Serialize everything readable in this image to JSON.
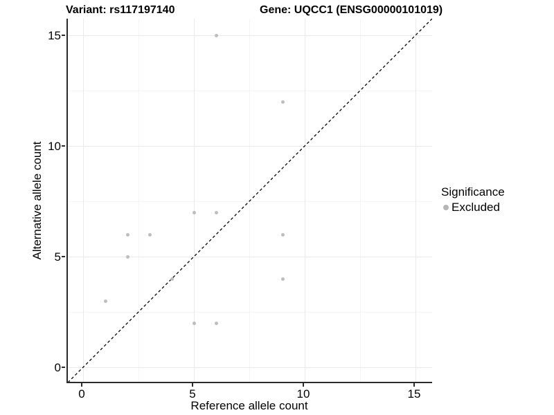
{
  "header": {
    "variant_title": "Variant: rs117197140",
    "gene_title": "Gene: UQCC1 (ENSG00000101019)"
  },
  "axes": {
    "x_label": "Reference allele count",
    "y_label": "Alternative allele count"
  },
  "legend": {
    "title": "Significance",
    "items": [
      {
        "label": "Excluded",
        "marker_color": "#b5b5b5"
      }
    ]
  },
  "colors": {
    "point": "#bdbdbd",
    "major_grid": "#e9e9e9",
    "minor_grid": "#f4f4f4",
    "axis_line": "#2a2a2a",
    "identity_line": "#000000",
    "background": "#ffffff"
  },
  "chart_data": {
    "type": "scatter",
    "title": "Variant: rs117197140   Gene: UQCC1 (ENSG00000101019)",
    "xlabel": "Reference allele count",
    "ylabel": "Alternative allele count",
    "xlim": [
      -0.75,
      15.75
    ],
    "ylim": [
      -0.75,
      15.75
    ],
    "x_ticks": [
      0,
      5,
      10,
      15
    ],
    "y_ticks": [
      0,
      5,
      10,
      15
    ],
    "minor_ticks": [
      2.5,
      7.5,
      12.5
    ],
    "grid": true,
    "legend_position": "right",
    "series": [
      {
        "name": "Excluded",
        "color": "#bdbdbd",
        "points": [
          [
            1,
            3
          ],
          [
            2,
            5
          ],
          [
            2,
            6
          ],
          [
            3,
            6
          ],
          [
            4,
            4
          ],
          [
            5,
            2
          ],
          [
            5,
            7
          ],
          [
            6,
            2
          ],
          [
            6,
            7
          ],
          [
            6,
            15
          ],
          [
            9,
            4
          ],
          [
            9,
            6
          ],
          [
            9,
            12
          ]
        ]
      }
    ],
    "reference_line": {
      "type": "identity",
      "slope": 1,
      "intercept": 0,
      "style": "dashed",
      "color": "#000000"
    }
  }
}
